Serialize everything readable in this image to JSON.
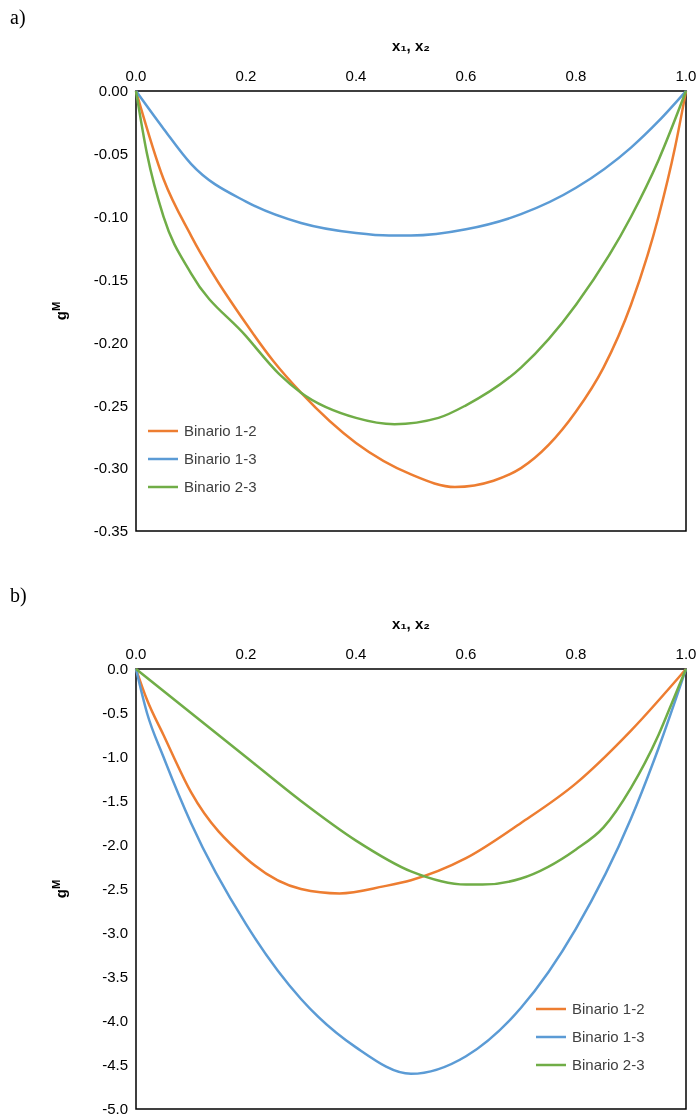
{
  "chart_data": [
    {
      "type": "line",
      "title": "a)",
      "xlabel": "x₁, x₂",
      "ylabel": "g$^{M}$",
      "xlim": [
        0,
        1
      ],
      "xticks": [
        {
          "value": 0,
          "label": "0.0"
        },
        {
          "value": 0.2,
          "label": "0.2"
        },
        {
          "value": 0.4,
          "label": "0.4"
        },
        {
          "value": 0.6,
          "label": "0.6"
        },
        {
          "value": 0.8,
          "label": "0.8"
        },
        {
          "value": 1,
          "label": "1.0"
        }
      ],
      "ylim": [
        -0.35,
        0
      ],
      "yticks": [
        {
          "value": 0,
          "label": "0.00"
        },
        {
          "value": -0.05,
          "label": "-0.05"
        },
        {
          "value": -0.1,
          "label": "-0.10"
        },
        {
          "value": -0.15,
          "label": "-0.15"
        },
        {
          "value": -0.2,
          "label": "-0.20"
        },
        {
          "value": -0.25,
          "label": "-0.25"
        },
        {
          "value": -0.3,
          "label": "-0.30"
        },
        {
          "value": -0.35,
          "label": "-0.35"
        }
      ],
      "grid": false,
      "legend": "bottom left",
      "marker": "none",
      "line_style": "solid",
      "series": [
        {
          "name": "Binario 1-2",
          "color": "#ed7d31",
          "x": [
            0,
            0.05,
            0.1,
            0.2,
            0.25,
            0.3,
            0.4,
            0.5,
            0.58,
            0.65,
            0.7,
            0.8,
            0.85,
            0.9,
            0.95,
            0.98,
            1
          ],
          "values": [
            0,
            -0.07,
            -0.115,
            -0.185,
            -0.215,
            -0.24,
            -0.28,
            -0.305,
            -0.315,
            -0.31,
            -0.3,
            -0.255,
            -0.22,
            -0.17,
            -0.1,
            -0.045,
            0
          ]
        },
        {
          "name": "Binario 1-3",
          "color": "#5b9bd5",
          "x": [
            0,
            0.05,
            0.1,
            0.2,
            0.3,
            0.4,
            0.46,
            0.5,
            0.6,
            0.7,
            0.8,
            0.9,
            0.95,
            1
          ],
          "values": [
            0,
            -0.03,
            -0.058,
            -0.088,
            -0.105,
            -0.113,
            -0.115,
            -0.115,
            -0.11,
            -0.098,
            -0.077,
            -0.045,
            -0.024,
            0
          ]
        },
        {
          "name": "Binario 2-3",
          "color": "#70ad47",
          "x": [
            0,
            0.02,
            0.05,
            0.1,
            0.2,
            0.26,
            0.3,
            0.4,
            0.47,
            0.55,
            0.6,
            0.7,
            0.8,
            0.9,
            0.95,
            1
          ],
          "values": [
            0,
            -0.05,
            -0.1,
            -0.145,
            -0.195,
            -0.225,
            -0.24,
            -0.26,
            -0.265,
            -0.26,
            -0.25,
            -0.22,
            -0.17,
            -0.1,
            -0.055,
            0
          ]
        }
      ]
    },
    {
      "type": "line",
      "title": "b)",
      "xlabel": "x₁, x₂",
      "ylabel": "g$^{M}$",
      "xlim": [
        0,
        1
      ],
      "xticks": [
        {
          "value": 0,
          "label": "0.0"
        },
        {
          "value": 0.2,
          "label": "0.2"
        },
        {
          "value": 0.4,
          "label": "0.4"
        },
        {
          "value": 0.6,
          "label": "0.6"
        },
        {
          "value": 0.8,
          "label": "0.8"
        },
        {
          "value": 1,
          "label": "1.0"
        }
      ],
      "ylim": [
        -5,
        0
      ],
      "yticks": [
        {
          "value": 0,
          "label": "0.0"
        },
        {
          "value": -0.5,
          "label": "-0.5"
        },
        {
          "value": -1,
          "label": "-1.0"
        },
        {
          "value": -1.5,
          "label": "-1.5"
        },
        {
          "value": -2,
          "label": "-2.0"
        },
        {
          "value": -2.5,
          "label": "-2.5"
        },
        {
          "value": -3,
          "label": "-3.0"
        },
        {
          "value": -3.5,
          "label": "-3.5"
        },
        {
          "value": -4,
          "label": "-4.0"
        },
        {
          "value": -4.5,
          "label": "-4.5"
        },
        {
          "value": -5,
          "label": "-5.0"
        }
      ],
      "grid": false,
      "legend": "bottom right",
      "marker": "none",
      "line_style": "solid",
      "series": [
        {
          "name": "Binario 1-2",
          "color": "#ed7d31",
          "x": [
            0,
            0.02,
            0.05,
            0.1,
            0.2,
            0.3,
            0.37,
            0.45,
            0.5,
            0.6,
            0.7,
            0.8,
            0.9,
            1
          ],
          "values": [
            0,
            -0.35,
            -0.75,
            -1.4,
            -2.15,
            -2.5,
            -2.55,
            -2.47,
            -2.4,
            -2.15,
            -1.75,
            -1.3,
            -0.7,
            0
          ]
        },
        {
          "name": "Binario 1-3",
          "color": "#5b9bd5",
          "x": [
            0,
            0.02,
            0.05,
            0.1,
            0.2,
            0.3,
            0.4,
            0.5,
            0.6,
            0.7,
            0.8,
            0.9,
            0.95,
            1
          ],
          "values": [
            0,
            -0.5,
            -1,
            -1.75,
            -2.9,
            -3.75,
            -4.3,
            -4.6,
            -4.4,
            -3.85,
            -2.95,
            -1.7,
            -0.9,
            0
          ]
        },
        {
          "name": "Binario 2-3",
          "color": "#70ad47",
          "x": [
            0,
            0.1,
            0.2,
            0.3,
            0.4,
            0.5,
            0.6,
            0.63,
            0.7,
            0.8,
            0.85,
            0.9,
            0.95,
            0.98,
            1
          ],
          "values": [
            0,
            -0.5,
            -1,
            -1.5,
            -1.95,
            -2.3,
            -2.45,
            -2.45,
            -2.38,
            -2.05,
            -1.8,
            -1.35,
            -0.75,
            -0.3,
            0
          ]
        }
      ]
    }
  ]
}
